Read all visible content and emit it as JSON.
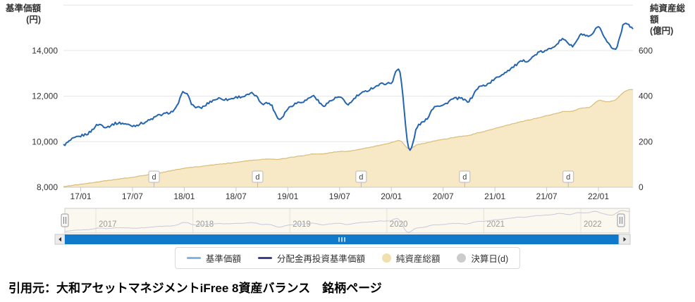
{
  "axes": {
    "left": {
      "title": "基準価額",
      "unit": "(円)",
      "ticks": [
        {
          "label": "14,000",
          "v": 14000
        },
        {
          "label": "12,000",
          "v": 12000
        },
        {
          "label": "10,000",
          "v": 10000
        },
        {
          "label": "8,000",
          "v": 8000
        }
      ],
      "range": [
        8000,
        16000
      ]
    },
    "right": {
      "title": "純資産総額",
      "unit": "(億円)",
      "ticks": [
        {
          "label": "600",
          "v": 600
        },
        {
          "label": "400",
          "v": 400
        },
        {
          "label": "200",
          "v": 200
        },
        {
          "label": "0",
          "v": 0
        }
      ],
      "range": [
        0,
        800
      ]
    },
    "x": {
      "ticks": [
        {
          "label": "17/01",
          "m": "2017/01"
        },
        {
          "label": "17/07",
          "m": "2017/07"
        },
        {
          "label": "18/01",
          "m": "2018/01"
        },
        {
          "label": "18/07",
          "m": "2018/07"
        },
        {
          "label": "19/01",
          "m": "2019/01"
        },
        {
          "label": "19/07",
          "m": "2019/07"
        },
        {
          "label": "20/01",
          "m": "2020/01"
        },
        {
          "label": "20/07",
          "m": "2020/07"
        },
        {
          "label": "21/01",
          "m": "2021/01"
        },
        {
          "label": "21/07",
          "m": "2021/07"
        },
        {
          "label": "22/01",
          "m": "2022/01"
        }
      ]
    }
  },
  "chart_data": {
    "type": "line+area",
    "x_start_month": "2016/11",
    "x_end_month": "2022/05",
    "series": [
      {
        "name": "基準価額",
        "type": "line",
        "axis": "left",
        "color": "#7cb5ec"
      },
      {
        "name": "分配金再投資基準価額",
        "type": "line",
        "axis": "left",
        "color": "#3b3f8e"
      },
      {
        "name": "純資産総額",
        "type": "area",
        "axis": "right",
        "color": "#f7e9c5"
      }
    ],
    "price_monthly": [
      9850,
      10100,
      10250,
      10400,
      10750,
      10650,
      10800,
      10800,
      10700,
      10800,
      10950,
      11150,
      11250,
      11450,
      12200,
      11600,
      11500,
      11750,
      11900,
      11850,
      11950,
      12000,
      12100,
      11700,
      11650,
      11000,
      11450,
      11700,
      11800,
      12000,
      11600,
      11800,
      11950,
      11650,
      12000,
      12200,
      12400,
      12550,
      12600,
      13050,
      9700,
      10650,
      10950,
      11550,
      11600,
      11850,
      11900,
      11800,
      12350,
      12500,
      12750,
      13000,
      13250,
      13500,
      13600,
      13900,
      14000,
      14250,
      14500,
      14200,
      14700,
      14600,
      15000,
      14400,
      14100,
      15200,
      14950
    ],
    "assets_monthly": [
      3,
      8,
      13,
      18,
      24,
      29,
      34,
      39,
      44,
      50,
      56,
      62,
      69,
      76,
      84,
      88,
      92,
      97,
      101,
      105,
      109,
      114,
      119,
      122,
      124,
      123,
      129,
      135,
      140,
      146,
      147,
      152,
      157,
      158,
      164,
      171,
      179,
      187,
      196,
      205,
      170,
      186,
      194,
      204,
      210,
      217,
      223,
      228,
      239,
      247,
      258,
      268,
      278,
      288,
      296,
      305,
      314,
      323,
      333,
      334,
      348,
      352,
      380,
      375,
      385,
      420,
      430
    ],
    "settlement_dates": [
      "2017/09",
      "2018/09",
      "2019/09",
      "2020/09",
      "2021/09"
    ],
    "settlement_marker_label": "d"
  },
  "navigator": {
    "years": [
      "2017",
      "2018",
      "2019",
      "2020",
      "2021",
      "2022"
    ]
  },
  "legend": {
    "items": [
      {
        "label": "基準価額",
        "marker": "line",
        "color": "#7cb5ec"
      },
      {
        "label": "分配金再投資基準価額",
        "marker": "line",
        "color": "#3b3f8e"
      },
      {
        "label": "純資産総額",
        "marker": "circle",
        "color": "#efe0ae"
      },
      {
        "label": "決算日(d)",
        "marker": "circle",
        "color": "#cccccc"
      }
    ]
  },
  "caption": {
    "text": "引用元：大和アセットマネジメントiFree 8資産バランス　銘柄ページ"
  },
  "colors": {
    "price_line_visible": "#2365b0",
    "assets_fill": "#f7e9c5",
    "assets_stroke": "#d9bc76",
    "gridline": "#e6e6e6",
    "axis_line": "#c9c9c9",
    "label": "#333333",
    "navigator_bg": "#faf8ef",
    "navigator_line": "#c9c9da",
    "navigator_label": "#9b9b93",
    "scrollbar": "#1079c9"
  }
}
